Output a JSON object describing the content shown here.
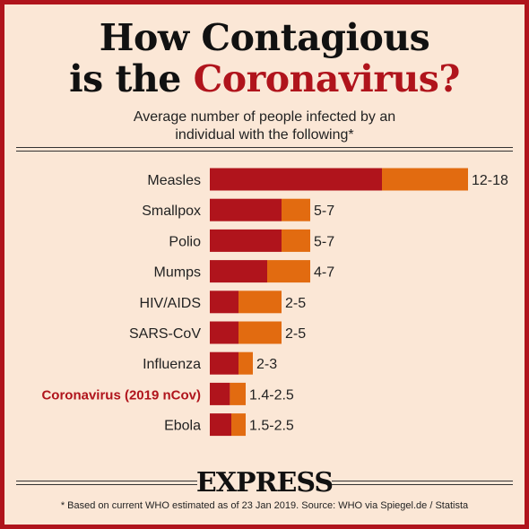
{
  "title_line1": "How Contagious",
  "title_line2_prefix": "is the ",
  "title_line2_accent": "Coronavirus?",
  "subtitle_line1": "Average number of people infected by an",
  "subtitle_line2": "individual with the following*",
  "brand": "EXPRESS",
  "footnote": "* Based on current WHO estimated as of 23 Jan 2019. Source: WHO via Spiegel.de / Statista",
  "colors": {
    "background": "#fbe7d6",
    "frame": "#b0141c",
    "low": "#b0141c",
    "high": "#e26b10",
    "highlight_label": "#b0141c"
  },
  "chart_data": {
    "type": "bar",
    "orientation": "horizontal",
    "stacked_range": true,
    "categories": [
      "Measles",
      "Smallpox",
      "Polio",
      "Mumps",
      "HIV/AIDS",
      "SARS-CoV",
      "Influenza",
      "Coronavirus (2019 nCov)",
      "Ebola"
    ],
    "highlight": "Coronavirus (2019 nCov)",
    "low": [
      12,
      5,
      5,
      4,
      2,
      2,
      2,
      1.4,
      1.5
    ],
    "high": [
      18,
      7,
      7,
      7,
      5,
      5,
      3,
      2.5,
      2.5
    ],
    "value_labels": [
      "12-18",
      "5-7",
      "5-7",
      "4-7",
      "2-5",
      "2-5",
      "2-3",
      "1.4-2.5",
      "1.5-2.5"
    ],
    "xlim": [
      0,
      18
    ],
    "grid": false
  }
}
